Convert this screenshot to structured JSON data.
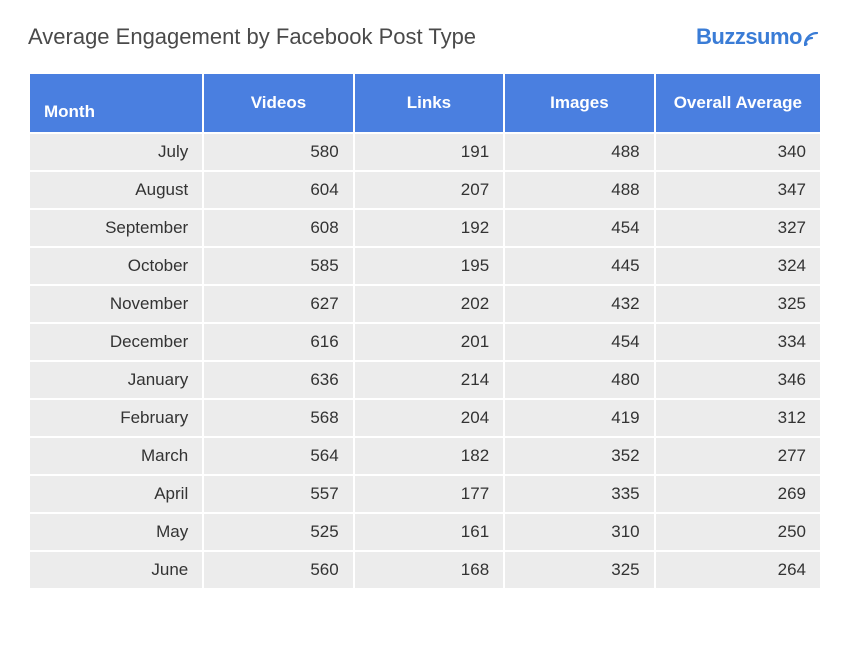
{
  "title": "Average Engagement by Facebook Post Type",
  "logo": {
    "text": "Buzzsumo",
    "color": "#3a7cd6"
  },
  "table": {
    "header_bg": "#4a7fe0",
    "header_text_color": "#ffffff",
    "cell_bg": "#ececec",
    "cell_text_color": "#333333",
    "border_color": "#ffffff",
    "columns": [
      {
        "key": "month",
        "label": "Month",
        "align": "left",
        "header_align": "left"
      },
      {
        "key": "videos",
        "label": "Videos",
        "align": "right",
        "header_align": "center"
      },
      {
        "key": "links",
        "label": "Links",
        "align": "right",
        "header_align": "center"
      },
      {
        "key": "images",
        "label": "Images",
        "align": "right",
        "header_align": "center"
      },
      {
        "key": "avg",
        "label": "Overall Average",
        "align": "right",
        "header_align": "center"
      }
    ],
    "rows": [
      {
        "month": "July",
        "videos": 580,
        "links": 191,
        "images": 488,
        "avg": 340
      },
      {
        "month": "August",
        "videos": 604,
        "links": 207,
        "images": 488,
        "avg": 347
      },
      {
        "month": "September",
        "videos": 608,
        "links": 192,
        "images": 454,
        "avg": 327
      },
      {
        "month": "October",
        "videos": 585,
        "links": 195,
        "images": 445,
        "avg": 324
      },
      {
        "month": "November",
        "videos": 627,
        "links": 202,
        "images": 432,
        "avg": 325
      },
      {
        "month": "December",
        "videos": 616,
        "links": 201,
        "images": 454,
        "avg": 334
      },
      {
        "month": "January",
        "videos": 636,
        "links": 214,
        "images": 480,
        "avg": 346
      },
      {
        "month": "February",
        "videos": 568,
        "links": 204,
        "images": 419,
        "avg": 312
      },
      {
        "month": "March",
        "videos": 564,
        "links": 182,
        "images": 352,
        "avg": 277
      },
      {
        "month": "April",
        "videos": 557,
        "links": 177,
        "images": 335,
        "avg": 269
      },
      {
        "month": "May",
        "videos": 525,
        "links": 161,
        "images": 310,
        "avg": 250
      },
      {
        "month": "June",
        "videos": 560,
        "links": 168,
        "images": 325,
        "avg": 264
      }
    ]
  }
}
